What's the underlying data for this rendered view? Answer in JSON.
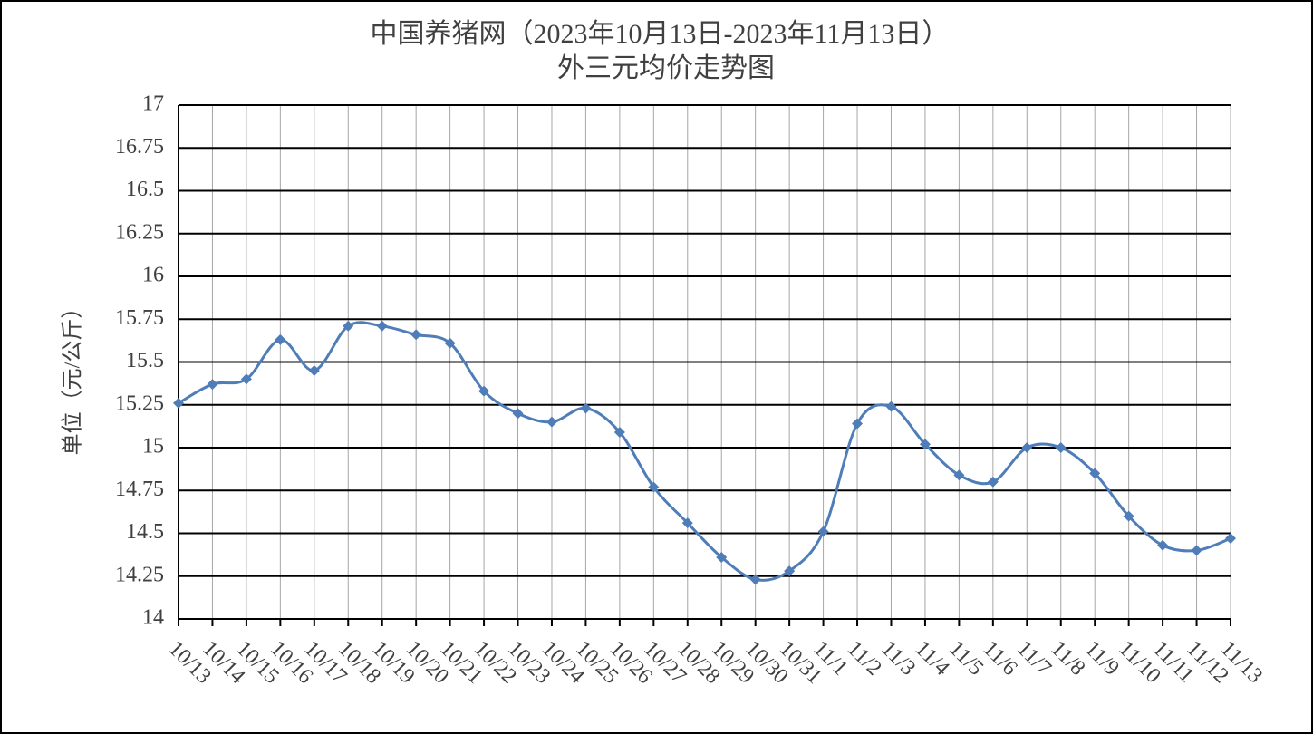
{
  "chart_data": {
    "type": "line",
    "title": "中国养猪网（2023年10月13日-2023年11月13日）",
    "subtitle": "外三元均价走势图",
    "y_label": "单位（元/公斤）",
    "categories": [
      "10/13",
      "10/14",
      "10/15",
      "10/16",
      "10/17",
      "10/18",
      "10/19",
      "10/20",
      "10/21",
      "10/22",
      "10/23",
      "10/24",
      "10/25",
      "10/26",
      "10/27",
      "10/28",
      "10/29",
      "10/30",
      "10/31",
      "11/1",
      "11/2",
      "11/3",
      "11/4",
      "11/5",
      "11/6",
      "11/7",
      "11/8",
      "11/9",
      "11/10",
      "11/11",
      "11/12",
      "11/13"
    ],
    "series": [
      {
        "color": "#4f7db8",
        "values": [
          15.26,
          15.37,
          15.4,
          15.63,
          15.45,
          15.71,
          15.71,
          15.66,
          15.61,
          15.33,
          15.2,
          15.15,
          15.23,
          15.09,
          14.77,
          14.56,
          14.36,
          14.23,
          14.28,
          14.51,
          15.14,
          15.24,
          15.02,
          14.84,
          14.8,
          15.0,
          15.0,
          14.85,
          14.6,
          14.43,
          14.4,
          14.47
        ]
      }
    ],
    "ylim": [
      14,
      17
    ],
    "yticks": [
      14,
      14.25,
      14.5,
      14.75,
      15,
      15.25,
      15.5,
      15.75,
      16,
      16.25,
      16.5,
      16.75,
      17
    ],
    "grid": true
  }
}
